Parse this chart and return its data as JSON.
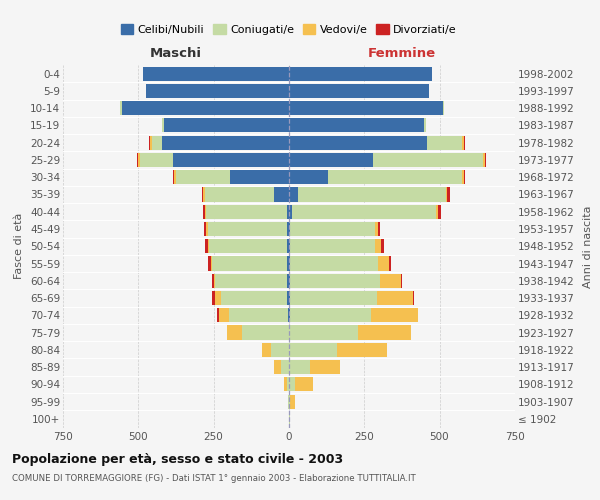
{
  "age_groups": [
    "100+",
    "95-99",
    "90-94",
    "85-89",
    "80-84",
    "75-79",
    "70-74",
    "65-69",
    "60-64",
    "55-59",
    "50-54",
    "45-49",
    "40-44",
    "35-39",
    "30-34",
    "25-29",
    "20-24",
    "15-19",
    "10-14",
    "5-9",
    "0-4"
  ],
  "birth_years": [
    "≤ 1902",
    "1903-1907",
    "1908-1912",
    "1913-1917",
    "1918-1922",
    "1923-1927",
    "1928-1932",
    "1933-1937",
    "1938-1942",
    "1943-1947",
    "1948-1952",
    "1953-1957",
    "1958-1962",
    "1963-1967",
    "1968-1972",
    "1973-1977",
    "1978-1982",
    "1983-1987",
    "1988-1992",
    "1993-1997",
    "1998-2002"
  ],
  "males_celibe": [
    0,
    0,
    0,
    0,
    0,
    0,
    3,
    5,
    5,
    5,
    5,
    5,
    5,
    50,
    195,
    385,
    420,
    415,
    555,
    475,
    485
  ],
  "males_coniugato": [
    0,
    2,
    5,
    25,
    60,
    155,
    195,
    220,
    240,
    250,
    260,
    265,
    270,
    230,
    180,
    110,
    35,
    5,
    5,
    0,
    0
  ],
  "males_vedovo": [
    0,
    2,
    10,
    25,
    30,
    50,
    35,
    20,
    5,
    5,
    5,
    5,
    5,
    5,
    5,
    5,
    5,
    0,
    0,
    0,
    0
  ],
  "males_divorziato": [
    0,
    0,
    0,
    0,
    0,
    0,
    5,
    10,
    5,
    10,
    8,
    8,
    5,
    5,
    5,
    5,
    5,
    0,
    0,
    0,
    0
  ],
  "females_nubile": [
    0,
    0,
    0,
    0,
    0,
    0,
    2,
    2,
    2,
    2,
    2,
    2,
    10,
    30,
    130,
    280,
    460,
    450,
    510,
    465,
    475
  ],
  "females_coniugata": [
    2,
    5,
    20,
    70,
    160,
    230,
    270,
    290,
    300,
    295,
    285,
    285,
    480,
    490,
    445,
    365,
    115,
    5,
    5,
    0,
    0
  ],
  "females_vedova": [
    2,
    15,
    60,
    100,
    165,
    175,
    155,
    120,
    70,
    35,
    20,
    10,
    5,
    5,
    5,
    5,
    5,
    0,
    0,
    0,
    0
  ],
  "females_divorziata": [
    0,
    0,
    0,
    0,
    0,
    0,
    2,
    2,
    5,
    8,
    10,
    5,
    10,
    10,
    5,
    5,
    5,
    0,
    0,
    0,
    0
  ],
  "col_celibe": "#3a6da8",
  "col_coniugato": "#c5dba4",
  "col_vedovo": "#f5c050",
  "col_divorziato": "#cc2222",
  "xlim": 750,
  "title": "Popolazione per età, sesso e stato civile - 2003",
  "subtitle": "COMUNE DI TORREMAGGIORE (FG) - Dati ISTAT 1° gennaio 2003 - Elaborazione TUTTITALIA.IT",
  "ylabel_left": "Fasce di età",
  "ylabel_right": "Anni di nascita",
  "label_males": "Maschi",
  "label_females": "Femmine",
  "legend_labels": [
    "Celibi/Nubili",
    "Coniugati/e",
    "Vedovi/e",
    "Divorziati/e"
  ],
  "bg_color": "#f5f5f5",
  "grid_color": "#cccccc",
  "xticks": [
    750,
    500,
    250,
    0,
    250,
    500,
    750
  ]
}
